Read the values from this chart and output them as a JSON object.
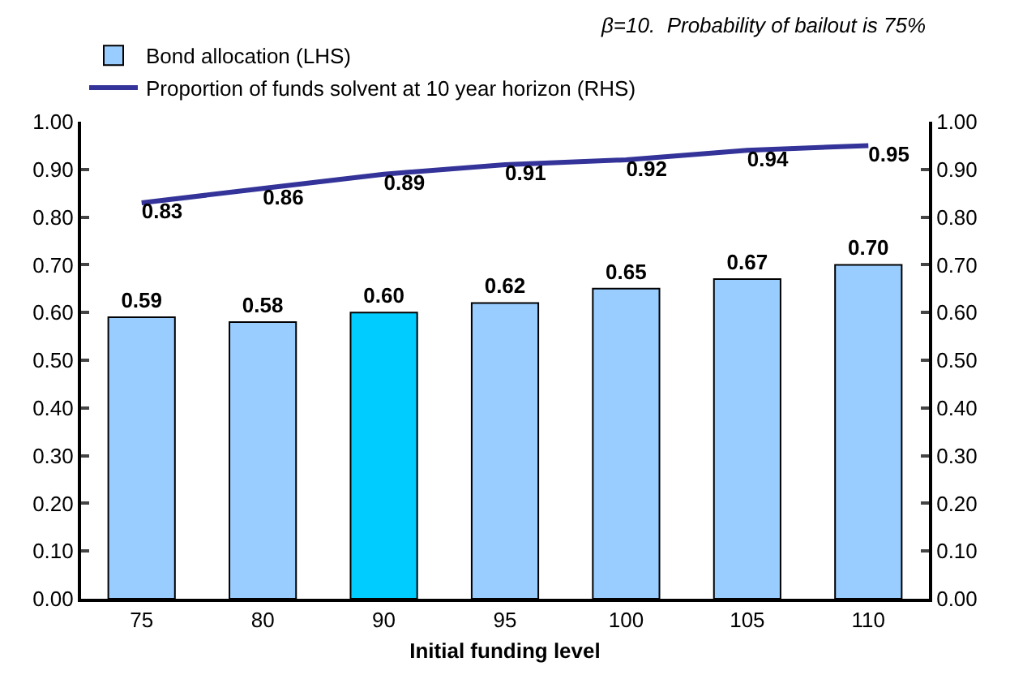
{
  "chart_data": {
    "type": "bar",
    "xlabel": "Initial funding level",
    "categories": [
      "75",
      "80",
      "90",
      "95",
      "100",
      "105",
      "110"
    ],
    "series": [
      {
        "name": "Bond allocation (LHS)",
        "colors": [
          "#99ccff",
          "#99ccff",
          "#00ccff",
          "#99ccff",
          "#99ccff",
          "#99ccff",
          "#99ccff"
        ],
        "values": [
          0.59,
          0.58,
          0.6,
          0.62,
          0.65,
          0.67,
          0.7
        ],
        "value_labels": [
          "0.59",
          "0.58",
          "0.60",
          "0.62",
          "0.65",
          "0.67",
          "0.70"
        ]
      },
      {
        "name": "Proportion of funds solvent at 10 year horizon (RHS)",
        "type": "line",
        "axis": "y2",
        "color": "#333399",
        "values": [
          0.83,
          0.86,
          0.89,
          0.91,
          0.92,
          0.94,
          0.95
        ],
        "value_labels": [
          "0.83",
          "0.86",
          "0.89",
          "0.91",
          "0.92",
          "0.94",
          "0.95"
        ]
      }
    ],
    "ylim": [
      0,
      1
    ],
    "yticks": [
      {
        "value": 0,
        "label": "0.00"
      },
      {
        "value": 0.1,
        "label": "0.10"
      },
      {
        "value": 0.2,
        "label": "0.20"
      },
      {
        "value": 0.3,
        "label": "0.30"
      },
      {
        "value": 0.4,
        "label": "0.40"
      },
      {
        "value": 0.5,
        "label": "0.50"
      },
      {
        "value": 0.6,
        "label": "0.60"
      },
      {
        "value": 0.7,
        "label": "0.70"
      },
      {
        "value": 0.8,
        "label": "0.80"
      },
      {
        "value": 0.9,
        "label": "0.90"
      },
      {
        "value": 1,
        "label": "1.00"
      }
    ],
    "y2lim": [
      0,
      1
    ],
    "y2ticks": [
      {
        "value": 0,
        "label": "0.00"
      },
      {
        "value": 0.1,
        "label": "0.10"
      },
      {
        "value": 0.2,
        "label": "0.20"
      },
      {
        "value": 0.3,
        "label": "0.30"
      },
      {
        "value": 0.4,
        "label": "0.40"
      },
      {
        "value": 0.5,
        "label": "0.50"
      },
      {
        "value": 0.6,
        "label": "0.60"
      },
      {
        "value": 0.7,
        "label": "0.70"
      },
      {
        "value": 0.8,
        "label": "0.80"
      },
      {
        "value": 0.9,
        "label": "0.90"
      },
      {
        "value": 1,
        "label": "1.00"
      }
    ],
    "annotations": [
      "β=10.  Probability of bailout is 75%"
    ],
    "legend": "top left",
    "marker": "none",
    "line_style": "solid"
  }
}
